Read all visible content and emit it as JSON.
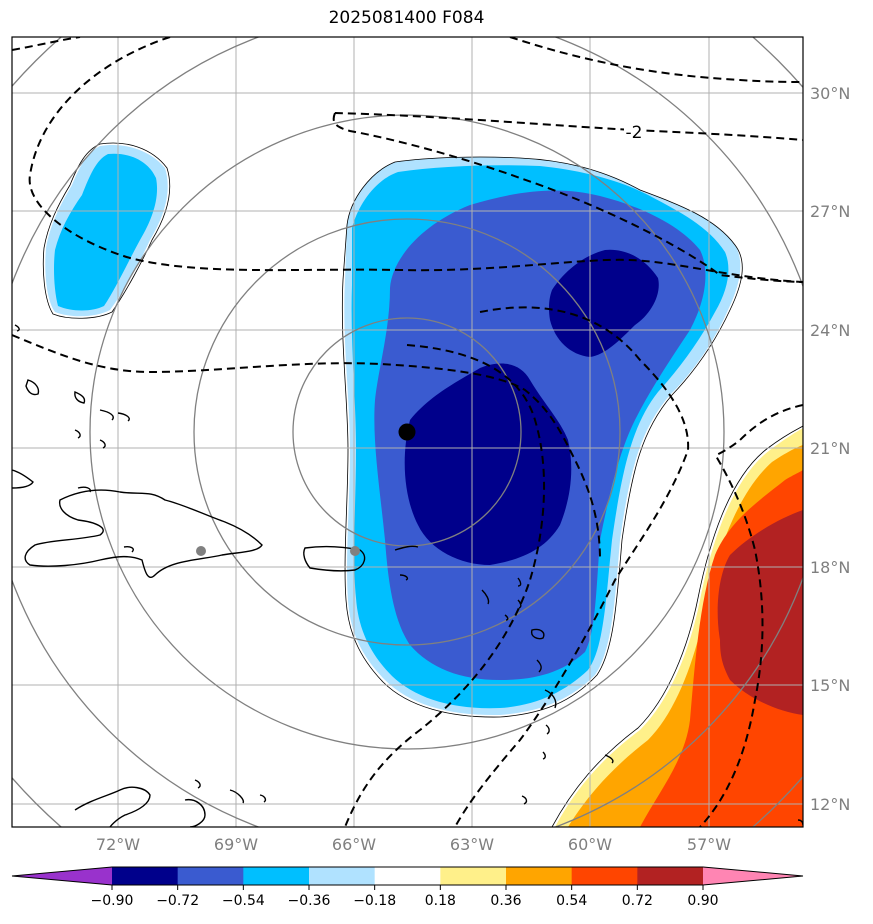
{
  "title": "2025081400 F084",
  "map": {
    "lat_labels": [
      "30°N",
      "27°N",
      "24°N",
      "21°N",
      "18°N",
      "15°N",
      "12°N"
    ],
    "lon_labels": [
      "72°W",
      "69°W",
      "66°W",
      "63°W",
      "60°W",
      "57°W"
    ],
    "contour_label": "-2",
    "colors": {
      "grid": "#b0b0b0",
      "range_ring": "#808080",
      "city_dot": "#808080",
      "storm_center": "#000000"
    }
  },
  "colorbar": {
    "ticks": [
      "−0.90",
      "−0.72",
      "−0.54",
      "−0.36",
      "−0.18",
      "0.18",
      "0.36",
      "0.54",
      "0.72",
      "0.90"
    ],
    "colors": [
      "#9932cc",
      "#00008b",
      "#3a5bd0",
      "#00bfff",
      "#b0e2ff",
      "#ffffff",
      "#fff08a",
      "#ffa500",
      "#ff4500",
      "#b22222",
      "#ff85b3"
    ]
  }
}
